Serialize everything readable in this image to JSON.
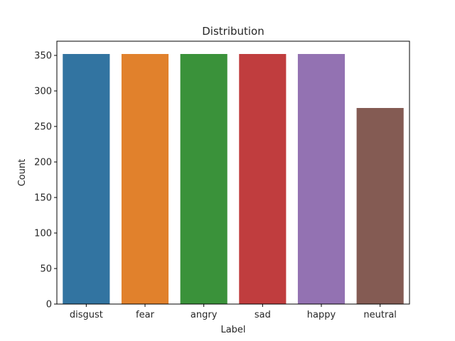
{
  "chart_data": {
    "type": "bar",
    "title": "Distribution",
    "xlabel": "Label",
    "ylabel": "Count",
    "categories": [
      "disgust",
      "fear",
      "angry",
      "sad",
      "happy",
      "neutral"
    ],
    "values": [
      352,
      352,
      352,
      352,
      352,
      276
    ],
    "colors": [
      "#3274a1",
      "#e1812c",
      "#3a923a",
      "#c03d3e",
      "#9372b2",
      "#845b53"
    ],
    "ylim": [
      0,
      370
    ],
    "yticks": [
      0,
      50,
      100,
      150,
      200,
      250,
      300,
      350
    ],
    "grid": false,
    "legend": "none"
  }
}
